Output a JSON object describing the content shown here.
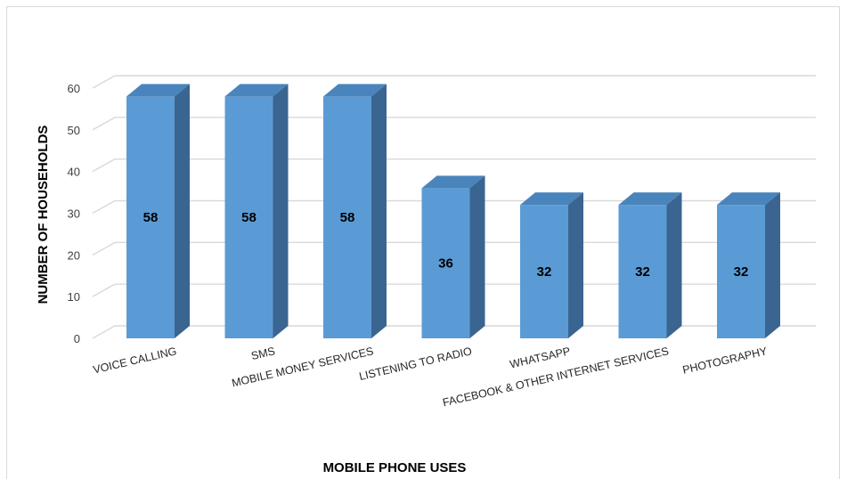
{
  "chart_data": {
    "type": "bar",
    "three_d": true,
    "categories": [
      "VOICE CALLING",
      "SMS",
      "MOBILE MONEY SERVICES",
      "LISTENING TO RADIO",
      "WHATSAPP",
      "FACEBOOK  & OTHER INTERNET SERVICES",
      "PHOTOGRAPHY"
    ],
    "values": [
      58,
      58,
      58,
      36,
      32,
      32,
      32
    ],
    "data_labels": [
      "58",
      "58",
      "58",
      "36",
      "32",
      "32",
      "32"
    ],
    "xlabel": "MOBILE PHONE USES",
    "ylabel": "NUMBER OF HOUSEHOLDS",
    "ylim": [
      0,
      60
    ],
    "yticks": [
      0,
      10,
      20,
      30,
      40,
      50,
      60
    ],
    "grid": true,
    "legend": "none",
    "colors": {
      "bar_front": "#5B9BD5",
      "bar_top": "#4A84BC",
      "bar_side": "#3A6590",
      "gridline": "#d9d9d9"
    }
  }
}
